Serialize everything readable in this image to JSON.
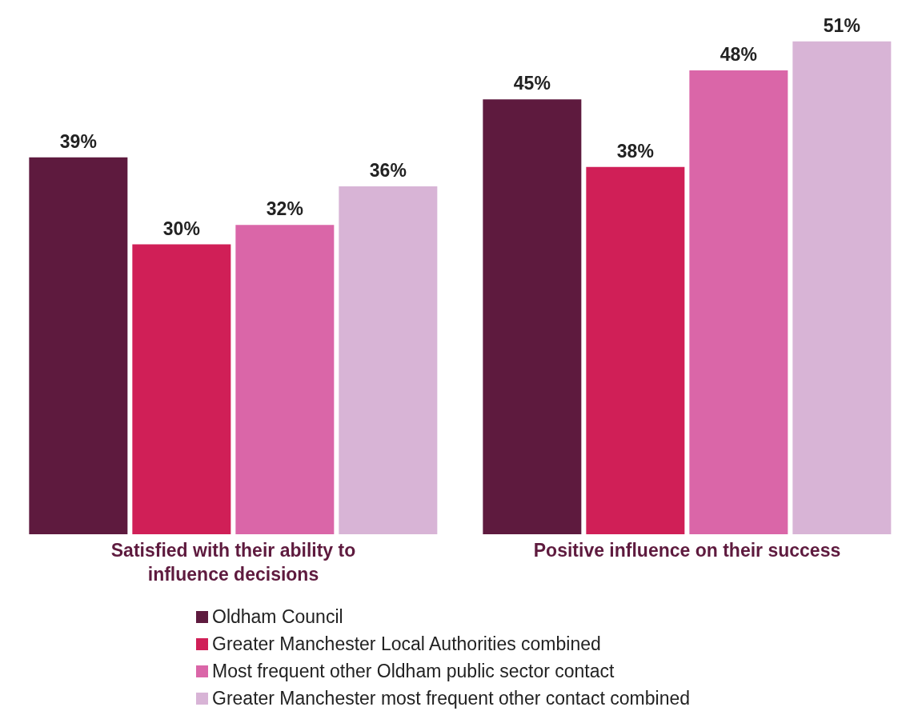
{
  "chart_data": {
    "type": "bar",
    "categories": [
      "Satisfied with their ability to influence decisions",
      "Positive influence on their success"
    ],
    "series": [
      {
        "name": "Oldham Council",
        "color": "#5e1a3e",
        "values": [
          39,
          45
        ],
        "value_labels": [
          "39%",
          "45%"
        ]
      },
      {
        "name": "Greater Manchester Local Authorities combined",
        "color": "#d01f57",
        "values": [
          30,
          38
        ],
        "value_labels": [
          "30%",
          "38%"
        ]
      },
      {
        "name": "Most frequent other Oldham public sector contact",
        "color": "#da66a8",
        "values": [
          32,
          48
        ],
        "value_labels": [
          "32%",
          "48%"
        ]
      },
      {
        "name": "Greater Manchester most frequent other contact combined",
        "color": "#d8b4d6",
        "values": [
          36,
          51
        ],
        "value_labels": [
          "36%",
          "51%"
        ]
      }
    ],
    "legend": "bottom"
  }
}
